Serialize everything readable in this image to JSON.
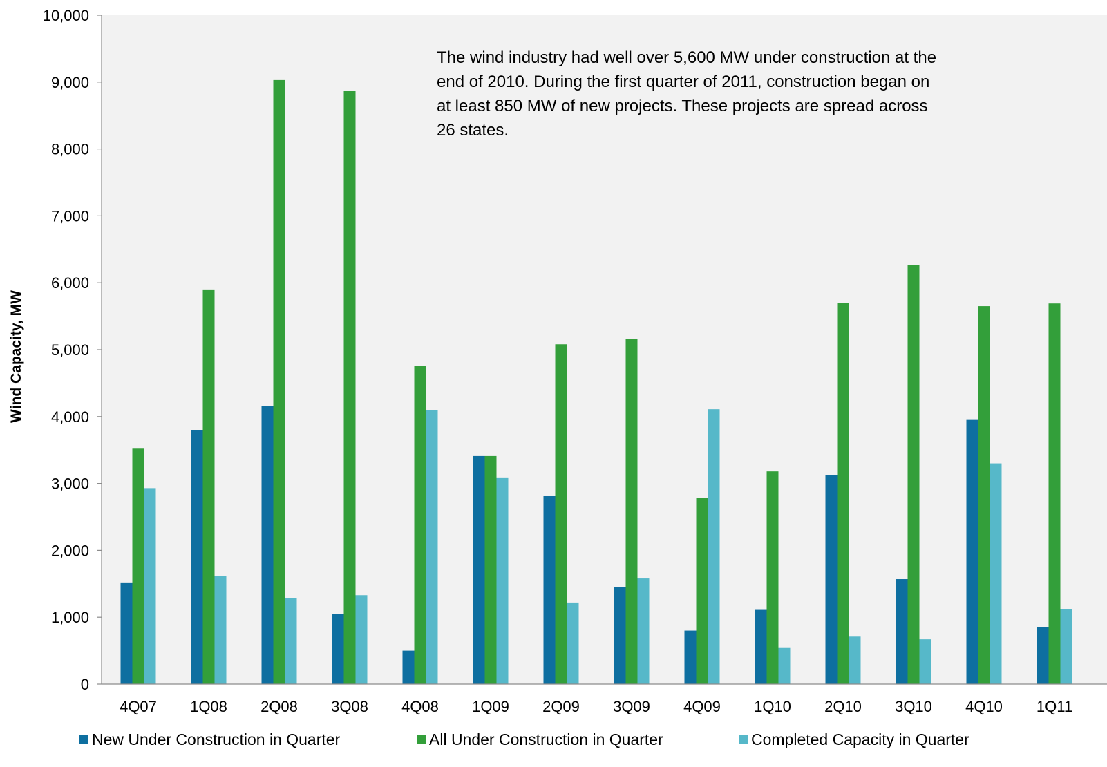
{
  "chart_data": {
    "type": "bar",
    "ylabel": "Wind Capacity, MW",
    "xlabel": "",
    "ylim": [
      0,
      10000
    ],
    "yticks": [
      "0",
      "1,000",
      "2,000",
      "3,000",
      "4,000",
      "5,000",
      "6,000",
      "7,000",
      "8,000",
      "9,000",
      "10,000"
    ],
    "categories": [
      "4Q07",
      "1Q08",
      "2Q08",
      "3Q08",
      "4Q08",
      "1Q09",
      "2Q09",
      "3Q09",
      "4Q09",
      "1Q10",
      "2Q10",
      "3Q10",
      "4Q10",
      "1Q11"
    ],
    "series": [
      {
        "name": "New Under Construction in Quarter",
        "color": "#0e6fa0",
        "values": [
          1520,
          3800,
          4160,
          1050,
          500,
          3410,
          2810,
          1450,
          800,
          1110,
          3120,
          1570,
          3950,
          850
        ]
      },
      {
        "name": "All Under Construction in Quarter",
        "color": "#339f3a",
        "values": [
          3520,
          5900,
          9030,
          8870,
          4760,
          3410,
          5080,
          5160,
          2780,
          3180,
          5700,
          6270,
          5650,
          5690
        ]
      },
      {
        "name": "Completed Capacity in Quarter",
        "color": "#56b8c9",
        "values": [
          2930,
          1620,
          1290,
          1330,
          4100,
          3080,
          1220,
          1580,
          4110,
          540,
          710,
          670,
          3300,
          1120
        ]
      }
    ],
    "grid": false,
    "legend_position": "bottom",
    "plot_background": "#f2f2f2",
    "annotation": [
      "The wind industry had well over 5,600 MW under construction at the",
      "end of 2010. During the first quarter of 2011, construction began on",
      "at least 850 MW of new projects. These projects are spread across",
      "26 states."
    ]
  }
}
